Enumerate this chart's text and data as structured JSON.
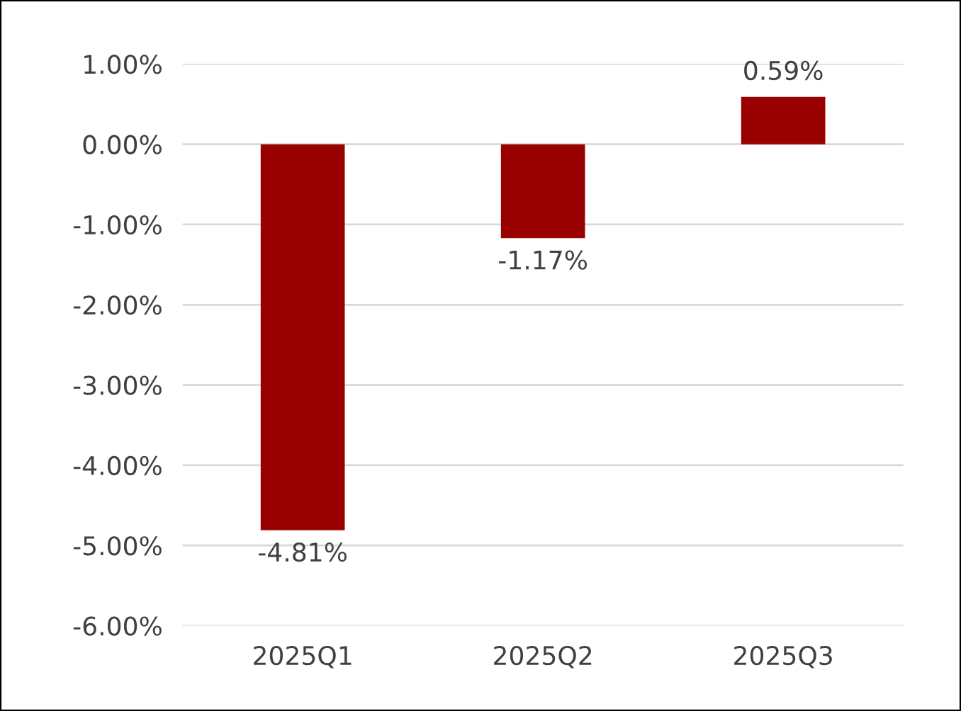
{
  "chart_data": {
    "type": "bar",
    "categories": [
      "2025Q1",
      "2025Q2",
      "2025Q3"
    ],
    "values": [
      -4.81,
      -1.17,
      0.59
    ],
    "color": "#990000",
    "value_labels": [
      "-4.81%",
      "-1.17%",
      "0.59%"
    ],
    "ylim": [
      -6,
      1
    ],
    "yticks": [
      {
        "value": -6,
        "label": "-6.00%"
      },
      {
        "value": -5,
        "label": "-5.00%"
      },
      {
        "value": -4,
        "label": "-4.00%"
      },
      {
        "value": -3,
        "label": "-3.00%"
      },
      {
        "value": -2,
        "label": "-2.00%"
      },
      {
        "value": -1,
        "label": "-1.00%"
      },
      {
        "value": 0,
        "label": "0.00%"
      },
      {
        "value": 1,
        "label": "1.00%"
      }
    ],
    "grid": "y"
  }
}
